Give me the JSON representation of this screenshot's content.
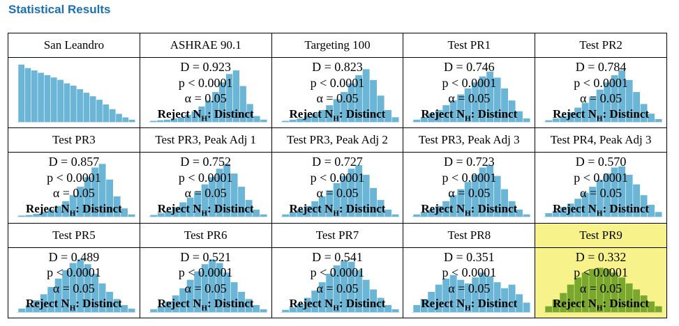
{
  "title": "Statistical Results",
  "reject_prefix": "Reject N",
  "reject_sub": "H",
  "reject_suffix": ": Distinct",
  "p_text": "p < 0.0001",
  "alpha_text": "α = 0.05",
  "highlight_color": "#f7f38a",
  "bar_color": "#6bb6d6",
  "highlight_bar_color": "#7aa82e",
  "cells": [
    {
      "label": "San Leandro",
      "stats": false,
      "shape": [
        98,
        92,
        88,
        84,
        80,
        76,
        72,
        66,
        62,
        56,
        50,
        44,
        38,
        30,
        22,
        14,
        8,
        4
      ]
    },
    {
      "label": "ASHRAE 90.1",
      "D": "D = 0.923",
      "stats": true,
      "shape": [
        2,
        3,
        4,
        6,
        8,
        12,
        18,
        26,
        36,
        50,
        66,
        80,
        86,
        60,
        30,
        10,
        4
      ]
    },
    {
      "label": "Targeting 100",
      "D": "D = 0.823",
      "stats": true,
      "shape": [
        2,
        4,
        6,
        10,
        14,
        20,
        28,
        38,
        50,
        64,
        78,
        88,
        70,
        44,
        20,
        8
      ]
    },
    {
      "label": "Test PR1",
      "D": "D = 0.746",
      "stats": true,
      "shape": [
        4,
        8,
        14,
        20,
        28,
        36,
        46,
        56,
        66,
        76,
        84,
        74,
        56,
        36,
        18,
        6
      ]
    },
    {
      "label": "Test PR2",
      "D": "D = 0.784",
      "stats": true,
      "shape": [
        3,
        6,
        10,
        16,
        24,
        32,
        42,
        54,
        66,
        78,
        86,
        70,
        50,
        30,
        14,
        5
      ]
    },
    {
      "label": "Test PR3",
      "D": "D = 0.857",
      "stats": true,
      "shape": [
        2,
        3,
        5,
        8,
        12,
        18,
        26,
        36,
        50,
        66,
        82,
        88,
        62,
        34,
        14,
        4
      ]
    },
    {
      "label": "Test PR3, Peak Adj 1",
      "D": "D = 0.752",
      "stats": true,
      "shape": [
        3,
        6,
        10,
        16,
        24,
        32,
        42,
        54,
        66,
        80,
        88,
        72,
        50,
        28,
        12,
        4
      ]
    },
    {
      "label": "Test PR3, Peak Adj 2",
      "D": "D = 0.727",
      "stats": true,
      "shape": [
        4,
        8,
        12,
        18,
        26,
        34,
        44,
        56,
        68,
        80,
        86,
        70,
        48,
        28,
        12,
        4
      ]
    },
    {
      "label": "Test PR3, Peak Adj 3",
      "D": "D = 0.723",
      "stats": true,
      "shape": [
        4,
        8,
        12,
        18,
        26,
        36,
        46,
        58,
        70,
        82,
        86,
        68,
        46,
        26,
        12,
        4
      ]
    },
    {
      "label": "Test PR4, Peak Adj 3",
      "D": "D = 0.570",
      "stats": true,
      "shape": [
        6,
        10,
        16,
        22,
        30,
        40,
        50,
        62,
        72,
        82,
        84,
        70,
        54,
        36,
        20,
        8
      ]
    },
    {
      "label": "Test PR5",
      "D": "D = 0.489",
      "stats": true,
      "shape": [
        6,
        12,
        20,
        30,
        42,
        56,
        70,
        82,
        88,
        80,
        64,
        48,
        34,
        22,
        12,
        6
      ]
    },
    {
      "label": "Test PR6",
      "D": "D = 0.521",
      "stats": true,
      "shape": [
        5,
        10,
        18,
        28,
        40,
        54,
        68,
        80,
        88,
        82,
        66,
        50,
        34,
        22,
        12,
        5
      ]
    },
    {
      "label": "Test PR7",
      "D": "D = 0.541",
      "stats": true,
      "shape": [
        4,
        8,
        14,
        24,
        36,
        50,
        64,
        78,
        86,
        84,
        70,
        54,
        38,
        24,
        12,
        5
      ]
    },
    {
      "label": "Test PR8",
      "D": "D = 0.351",
      "stats": true,
      "shape": [
        12,
        22,
        34,
        46,
        56,
        62,
        54,
        48,
        58,
        66,
        60,
        50,
        40,
        46,
        30,
        16
      ]
    },
    {
      "label": "Test PR9",
      "D": "D = 0.332",
      "stats": true,
      "highlight": true,
      "shape": [
        10,
        20,
        32,
        46,
        58,
        66,
        72,
        74,
        72,
        66,
        58,
        48,
        38,
        28,
        18,
        10
      ]
    }
  ]
}
